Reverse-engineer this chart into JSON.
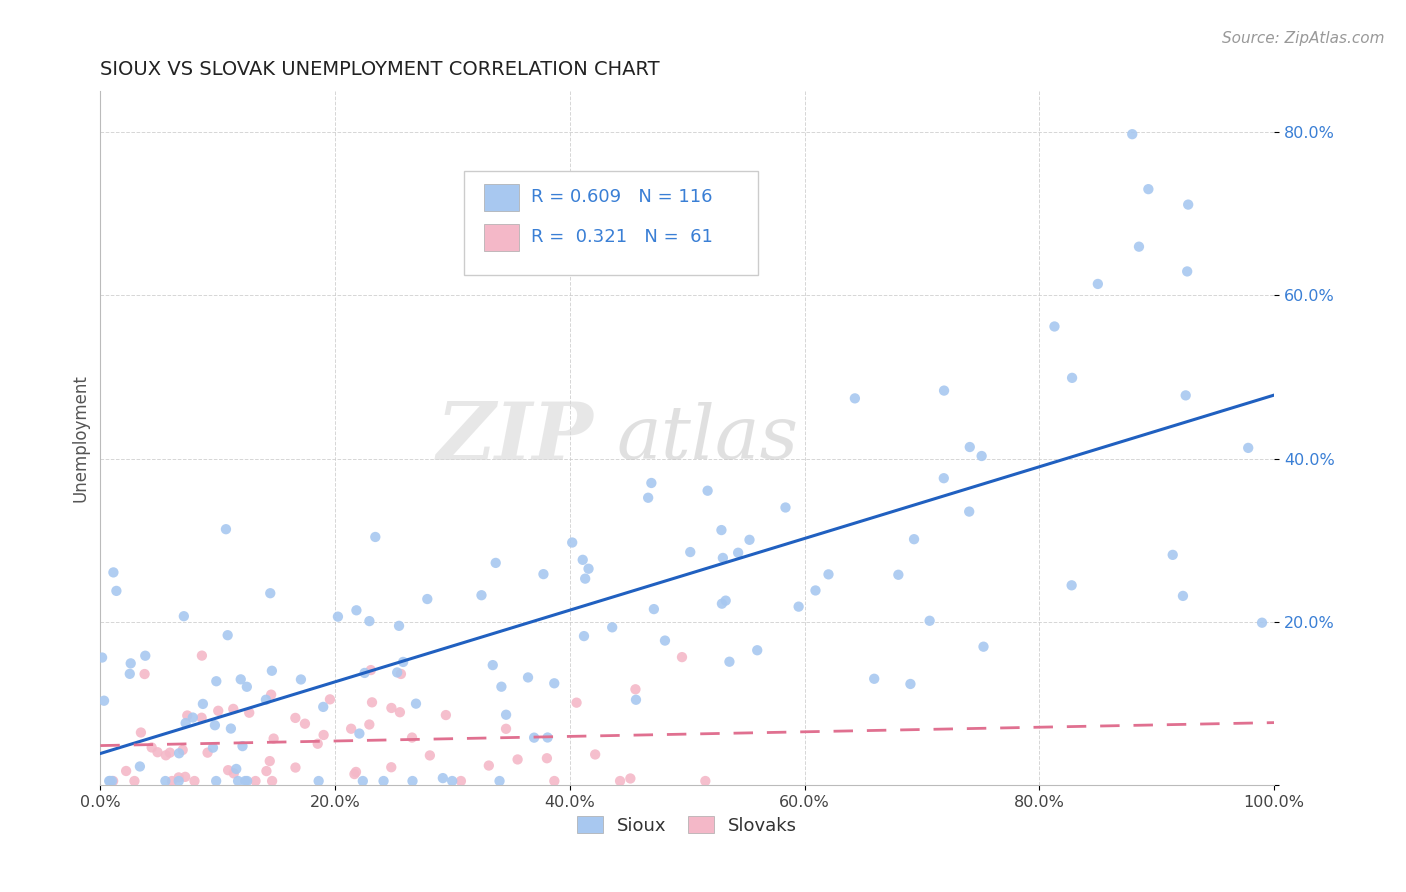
{
  "title": "SIOUX VS SLOVAK UNEMPLOYMENT CORRELATION CHART",
  "source": "Source: ZipAtlas.com",
  "ylabel": "Unemployment",
  "watermark_zip": "ZIP",
  "watermark_atlas": "atlas",
  "legend_blue_r": "0.609",
  "legend_blue_n": "116",
  "legend_pink_r": "0.321",
  "legend_pink_n": "61",
  "blue_color": "#a8c8f0",
  "pink_color": "#f4b8c8",
  "trendline_blue": "#2060c0",
  "trendline_pink": "#e07090",
  "title_color": "#222222",
  "source_color": "#999999",
  "ylabel_color": "#555555",
  "ytick_color": "#3a7fd5",
  "xtick_color": "#444444",
  "grid_color": "#cccccc",
  "xlim": [
    0.0,
    1.0
  ],
  "ylim": [
    0.0,
    0.85
  ],
  "xticks": [
    0.0,
    0.2,
    0.4,
    0.6,
    0.8,
    1.0
  ],
  "yticks": [
    0.0,
    0.2,
    0.4,
    0.6,
    0.8
  ],
  "ytick_labels": [
    "",
    "20.0%",
    "40.0%",
    "60.0%",
    "80.0%"
  ],
  "xtick_labels": [
    "0.0%",
    "20.0%",
    "40.0%",
    "60.0%",
    "80.0%",
    "100.0%"
  ]
}
